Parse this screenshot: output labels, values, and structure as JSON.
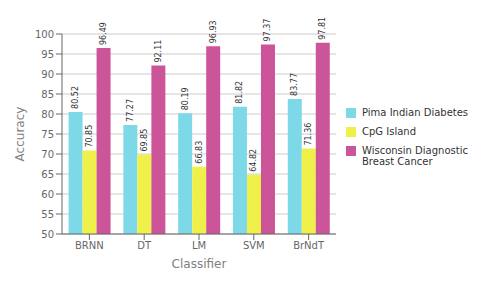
{
  "chart_data": {
    "type": "bar",
    "categories": [
      "BRNN",
      "DT",
      "LM",
      "SVM",
      "BrNdT"
    ],
    "series": [
      {
        "name": "Pima Indian Diabetes",
        "color": "#7dd9e8",
        "values": [
          80.52,
          77.27,
          80.19,
          81.82,
          83.77
        ]
      },
      {
        "name": "CpG Island",
        "color": "#f0f04a",
        "values": [
          70.85,
          69.85,
          66.83,
          64.82,
          71.36
        ]
      },
      {
        "name": "Wisconsin Diagnostic Breast Cancer",
        "color": "#cc5599",
        "values": [
          96.49,
          92.11,
          96.93,
          97.37,
          97.81
        ]
      }
    ],
    "xlabel": "Classifier",
    "ylabel": "Accuracy",
    "ylim": [
      50,
      100
    ],
    "yticks": [
      50,
      55,
      60,
      65,
      70,
      75,
      80,
      85,
      90,
      95,
      100
    ],
    "grid": true,
    "data_labels": true,
    "legend": "right"
  }
}
